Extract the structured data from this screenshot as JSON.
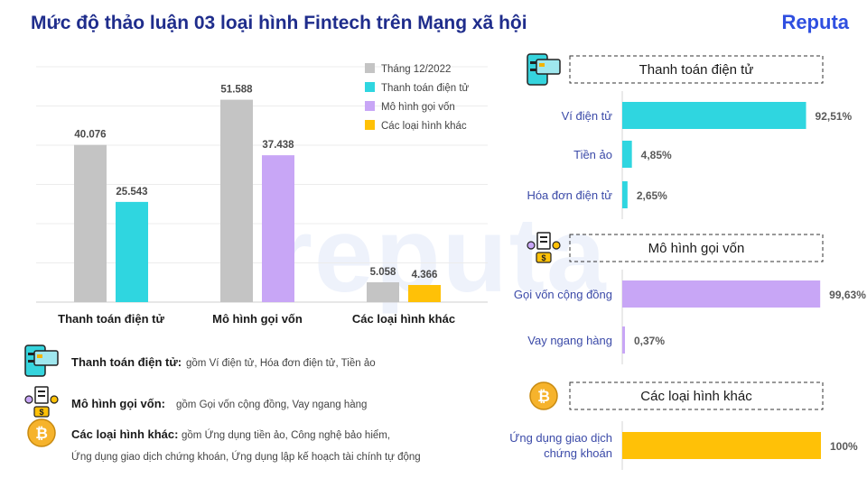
{
  "title": "Mức độ thảo luận 03 loại hình Fintech trên Mạng xã hội",
  "brand": "Reputa",
  "watermark": "reputa",
  "chart_data": [
    {
      "type": "bar",
      "categories": [
        "Thanh toán điện tử",
        "Mô hình gọi vốn",
        "Các loại hình khác"
      ],
      "series": [
        {
          "name": "Tháng 12/2022",
          "values": [
            40076,
            51588,
            5058
          ],
          "labels": [
            "40.076",
            "51.588",
            "5.058"
          ],
          "color": "#c4c4c4"
        },
        {
          "name": "",
          "values": [
            25543,
            37438,
            4366
          ],
          "labels": [
            "25.543",
            "37.438",
            "4.366"
          ],
          "colors": [
            "#2fd6e0",
            "#c8a6f6",
            "#ffc107"
          ]
        }
      ],
      "legend": [
        {
          "label": "Tháng 12/2022",
          "color": "#c4c4c4"
        },
        {
          "label": "Thanh toán điện tử",
          "color": "#2fd6e0"
        },
        {
          "label": "Mô hình gọi vốn",
          "color": "#c8a6f6"
        },
        {
          "label": "Các loại hình khác",
          "color": "#ffc107"
        }
      ],
      "legend_position": "top-right",
      "ylim": [
        0,
        60000
      ],
      "grid": true
    },
    {
      "type": "bar",
      "orientation": "horizontal",
      "title": "Thanh toán điện tử",
      "categories": [
        "Ví điện tử",
        "Tiền ảo",
        "Hóa đơn điện tử"
      ],
      "values": [
        92.51,
        4.85,
        2.65
      ],
      "labels": [
        "92,51%",
        "4,85%",
        "2,65%"
      ],
      "color": "#2fd6e0",
      "xlim": [
        0,
        100
      ]
    },
    {
      "type": "bar",
      "orientation": "horizontal",
      "title": "Mô hình gọi vốn",
      "categories": [
        "Gọi vốn cộng đồng",
        "Vay ngang hàng"
      ],
      "values": [
        99.63,
        0.37
      ],
      "labels": [
        "99,63%",
        "0,37%"
      ],
      "color": "#c8a6f6",
      "xlim": [
        0,
        100
      ]
    },
    {
      "type": "bar",
      "orientation": "horizontal",
      "title": "Các loại hình khác",
      "categories": [
        [
          "Ứng dụng giao dịch",
          "chứng khoán"
        ]
      ],
      "values": [
        100
      ],
      "labels": [
        "100%"
      ],
      "color": "#ffc107",
      "xlim": [
        0,
        100
      ]
    }
  ],
  "notes": [
    {
      "bold": "Thanh toán điện tử:",
      "text": "gồm Ví điện tử, Hóa đơn điện tử, Tiền ảo",
      "text2": "",
      "icon": "payment-card-icon"
    },
    {
      "bold": "Mô hình gọi vốn:",
      "text": "gồm Gọi vốn cộng đồng, Vay ngang hàng",
      "text2": "",
      "icon": "crowdfunding-icon"
    },
    {
      "bold": "Các loại hình khác:",
      "text": "gồm Ứng dụng tiền ảo, Công nghệ bảo hiểm,",
      "text2": "Ứng dụng giao dịch chứng khoán, Ứng dụng lập kế hoạch tài chính tự động",
      "icon": "bitcoin-coin-icon"
    }
  ]
}
